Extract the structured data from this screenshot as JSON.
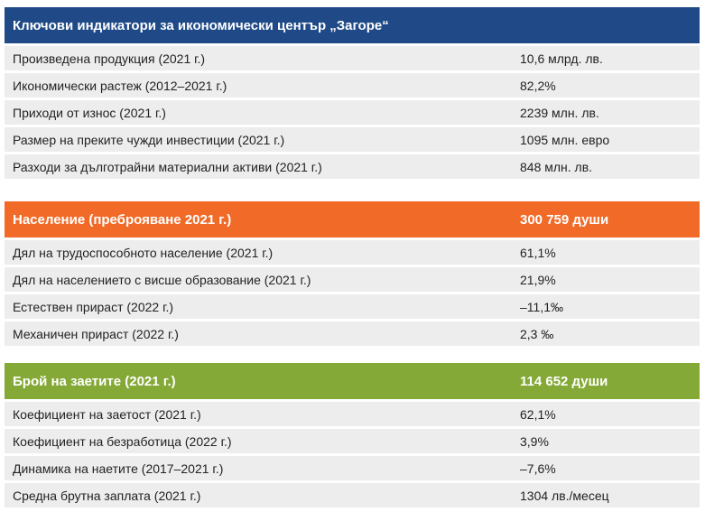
{
  "key_indicators": {
    "title": "Ключови индикатори за икономически център „Загоре“",
    "rows": [
      {
        "label": "Произведена продукция (2021 г.)",
        "value": "10,6 млрд. лв."
      },
      {
        "label": "Икономически растеж (2012–2021 г.)",
        "value": "82,2%"
      },
      {
        "label": "Приходи от износ (2021 г.)",
        "value": "2239 млн. лв."
      },
      {
        "label": "Размер на преките чужди инвестиции (2021 г.)",
        "value": "1095 млн. евро"
      },
      {
        "label": "Разходи за дълготрайни материални активи (2021 г.)",
        "value": "848 млн. лв."
      }
    ]
  },
  "population": {
    "title": "Население (преброяване 2021 г.)",
    "title_value": "300 759 души",
    "rows": [
      {
        "label": "Дял на трудоспособното население (2021 г.)",
        "value": "61,1%"
      },
      {
        "label": "Дял на населението с висше образование (2021 г.)",
        "value": "21,9%"
      },
      {
        "label": "Естествен прираст (2022 г.)",
        "value": "–11,1‰"
      },
      {
        "label": "Механичен прираст (2022 г.)",
        "value": "2,3 ‰"
      }
    ]
  },
  "employment": {
    "title": "Брой на заетите (2021 г.)",
    "title_value": "114 652 души",
    "rows": [
      {
        "label": "Коефициент на заетост (2021 г.)",
        "value": "62,1%"
      },
      {
        "label": "Коефициент на безработица (2022 г.)",
        "value": "3,9%"
      },
      {
        "label": "Динамика на наетите (2017–2021 г.)",
        "value": "–7,6%"
      },
      {
        "label": "Средна брутна заплата (2021 г.)",
        "value": "1304 лв./месец"
      }
    ]
  },
  "colors": {
    "key_indicators_header": "#1f4a87",
    "population_header": "#f26a27",
    "employment_header": "#84a936",
    "row_background": "#ededed"
  }
}
